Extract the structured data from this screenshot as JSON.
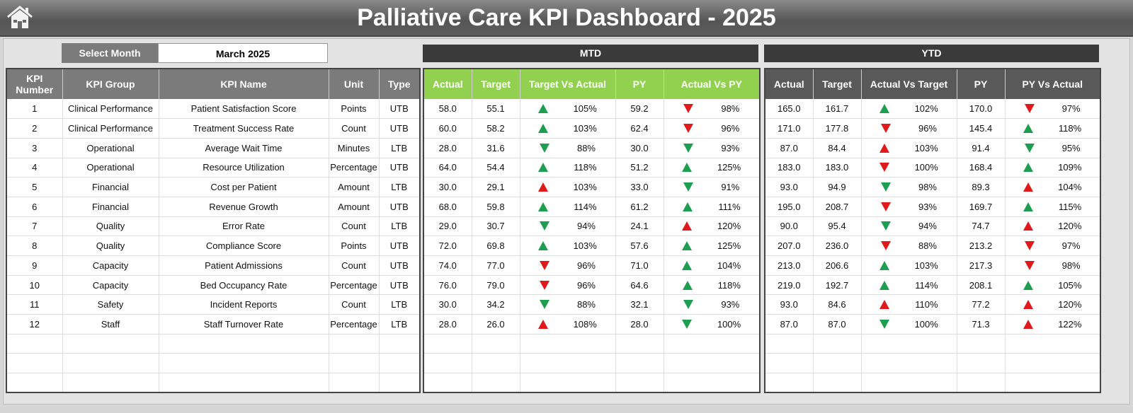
{
  "header": {
    "title": "Palliative Care KPI Dashboard - 2025",
    "home_icon": "home-icon"
  },
  "selector": {
    "label": "Select Month",
    "value": "March 2025"
  },
  "sections": {
    "mtd": "MTD",
    "ytd": "YTD"
  },
  "colors": {
    "good": "#1e9e50",
    "bad": "#e0191b",
    "mtd_header": "#92d050",
    "ytd_header": "#595959"
  },
  "left_columns": [
    "KPI Number",
    "KPI Group",
    "KPI Name",
    "Unit",
    "Type"
  ],
  "mtd_columns": [
    "Actual",
    "Target",
    "Target Vs Actual",
    "PY",
    "Actual Vs PY"
  ],
  "ytd_columns": [
    "Actual",
    "Target",
    "Actual Vs Target",
    "PY",
    "PY Vs Actual"
  ],
  "kpis": [
    {
      "num": "1",
      "group": "Clinical Performance",
      "name": "Patient Satisfaction Score",
      "unit": "Points",
      "type": "UTB"
    },
    {
      "num": "2",
      "group": "Clinical Performance",
      "name": "Treatment Success Rate",
      "unit": "Count",
      "type": "UTB"
    },
    {
      "num": "3",
      "group": "Operational",
      "name": "Average Wait Time",
      "unit": "Minutes",
      "type": "LTB"
    },
    {
      "num": "4",
      "group": "Operational",
      "name": "Resource Utilization",
      "unit": "Percentage",
      "type": "UTB"
    },
    {
      "num": "5",
      "group": "Financial",
      "name": "Cost per Patient",
      "unit": "Amount",
      "type": "LTB"
    },
    {
      "num": "6",
      "group": "Financial",
      "name": "Revenue Growth",
      "unit": "Amount",
      "type": "UTB"
    },
    {
      "num": "7",
      "group": "Quality",
      "name": "Error Rate",
      "unit": "Count",
      "type": "LTB"
    },
    {
      "num": "8",
      "group": "Quality",
      "name": "Compliance Score",
      "unit": "Points",
      "type": "UTB"
    },
    {
      "num": "9",
      "group": "Capacity",
      "name": "Patient Admissions",
      "unit": "Count",
      "type": "UTB"
    },
    {
      "num": "10",
      "group": "Capacity",
      "name": "Bed Occupancy Rate",
      "unit": "Percentage",
      "type": "UTB"
    },
    {
      "num": "11",
      "group": "Safety",
      "name": "Incident Reports",
      "unit": "Count",
      "type": "LTB"
    },
    {
      "num": "12",
      "group": "Staff",
      "name": "Staff Turnover Rate",
      "unit": "Percentage",
      "type": "LTB"
    }
  ],
  "mtd": [
    {
      "actual": "58.0",
      "target": "55.1",
      "c1": {
        "dir": "up",
        "color": "good",
        "pct": "105%"
      },
      "py": "59.2",
      "c2": {
        "dir": "down",
        "color": "bad",
        "pct": "98%"
      }
    },
    {
      "actual": "60.0",
      "target": "58.2",
      "c1": {
        "dir": "up",
        "color": "good",
        "pct": "103%"
      },
      "py": "62.4",
      "c2": {
        "dir": "down",
        "color": "bad",
        "pct": "96%"
      }
    },
    {
      "actual": "28.0",
      "target": "31.6",
      "c1": {
        "dir": "down",
        "color": "good",
        "pct": "88%"
      },
      "py": "30.0",
      "c2": {
        "dir": "down",
        "color": "good",
        "pct": "93%"
      }
    },
    {
      "actual": "64.0",
      "target": "54.4",
      "c1": {
        "dir": "up",
        "color": "good",
        "pct": "118%"
      },
      "py": "51.2",
      "c2": {
        "dir": "up",
        "color": "good",
        "pct": "125%"
      }
    },
    {
      "actual": "30.0",
      "target": "29.1",
      "c1": {
        "dir": "up",
        "color": "bad",
        "pct": "103%"
      },
      "py": "33.0",
      "c2": {
        "dir": "down",
        "color": "good",
        "pct": "91%"
      }
    },
    {
      "actual": "68.0",
      "target": "59.8",
      "c1": {
        "dir": "up",
        "color": "good",
        "pct": "114%"
      },
      "py": "61.2",
      "c2": {
        "dir": "up",
        "color": "good",
        "pct": "111%"
      }
    },
    {
      "actual": "29.0",
      "target": "30.7",
      "c1": {
        "dir": "down",
        "color": "good",
        "pct": "94%"
      },
      "py": "24.1",
      "c2": {
        "dir": "up",
        "color": "bad",
        "pct": "120%"
      }
    },
    {
      "actual": "72.0",
      "target": "69.8",
      "c1": {
        "dir": "up",
        "color": "good",
        "pct": "103%"
      },
      "py": "57.6",
      "c2": {
        "dir": "up",
        "color": "good",
        "pct": "125%"
      }
    },
    {
      "actual": "74.0",
      "target": "77.0",
      "c1": {
        "dir": "down",
        "color": "bad",
        "pct": "96%"
      },
      "py": "71.0",
      "c2": {
        "dir": "up",
        "color": "good",
        "pct": "104%"
      }
    },
    {
      "actual": "76.0",
      "target": "79.0",
      "c1": {
        "dir": "down",
        "color": "bad",
        "pct": "96%"
      },
      "py": "64.6",
      "c2": {
        "dir": "up",
        "color": "good",
        "pct": "118%"
      }
    },
    {
      "actual": "30.0",
      "target": "34.2",
      "c1": {
        "dir": "down",
        "color": "good",
        "pct": "88%"
      },
      "py": "32.1",
      "c2": {
        "dir": "down",
        "color": "good",
        "pct": "93%"
      }
    },
    {
      "actual": "28.0",
      "target": "26.0",
      "c1": {
        "dir": "up",
        "color": "bad",
        "pct": "108%"
      },
      "py": "28.0",
      "c2": {
        "dir": "down",
        "color": "good",
        "pct": "100%"
      }
    }
  ],
  "ytd": [
    {
      "actual": "165.0",
      "target": "161.7",
      "c1": {
        "dir": "up",
        "color": "good",
        "pct": "102%"
      },
      "py": "170.0",
      "c2": {
        "dir": "down",
        "color": "bad",
        "pct": "97%"
      }
    },
    {
      "actual": "171.0",
      "target": "177.8",
      "c1": {
        "dir": "down",
        "color": "bad",
        "pct": "96%"
      },
      "py": "145.4",
      "c2": {
        "dir": "up",
        "color": "good",
        "pct": "118%"
      }
    },
    {
      "actual": "87.0",
      "target": "84.4",
      "c1": {
        "dir": "up",
        "color": "bad",
        "pct": "103%"
      },
      "py": "91.4",
      "c2": {
        "dir": "down",
        "color": "good",
        "pct": "95%"
      }
    },
    {
      "actual": "183.0",
      "target": "183.0",
      "c1": {
        "dir": "down",
        "color": "bad",
        "pct": "100%"
      },
      "py": "168.4",
      "c2": {
        "dir": "up",
        "color": "good",
        "pct": "109%"
      }
    },
    {
      "actual": "93.0",
      "target": "94.9",
      "c1": {
        "dir": "down",
        "color": "good",
        "pct": "98%"
      },
      "py": "89.3",
      "c2": {
        "dir": "up",
        "color": "bad",
        "pct": "104%"
      }
    },
    {
      "actual": "195.0",
      "target": "208.7",
      "c1": {
        "dir": "down",
        "color": "bad",
        "pct": "93%"
      },
      "py": "169.7",
      "c2": {
        "dir": "up",
        "color": "good",
        "pct": "115%"
      }
    },
    {
      "actual": "90.0",
      "target": "95.4",
      "c1": {
        "dir": "down",
        "color": "good",
        "pct": "94%"
      },
      "py": "74.7",
      "c2": {
        "dir": "up",
        "color": "bad",
        "pct": "120%"
      }
    },
    {
      "actual": "207.0",
      "target": "236.0",
      "c1": {
        "dir": "down",
        "color": "bad",
        "pct": "88%"
      },
      "py": "213.2",
      "c2": {
        "dir": "down",
        "color": "bad",
        "pct": "97%"
      }
    },
    {
      "actual": "213.0",
      "target": "206.6",
      "c1": {
        "dir": "up",
        "color": "good",
        "pct": "103%"
      },
      "py": "217.3",
      "c2": {
        "dir": "down",
        "color": "bad",
        "pct": "98%"
      }
    },
    {
      "actual": "219.0",
      "target": "192.7",
      "c1": {
        "dir": "up",
        "color": "good",
        "pct": "114%"
      },
      "py": "208.1",
      "c2": {
        "dir": "up",
        "color": "good",
        "pct": "105%"
      }
    },
    {
      "actual": "93.0",
      "target": "84.6",
      "c1": {
        "dir": "up",
        "color": "bad",
        "pct": "110%"
      },
      "py": "77.2",
      "c2": {
        "dir": "up",
        "color": "bad",
        "pct": "120%"
      }
    },
    {
      "actual": "87.0",
      "target": "87.0",
      "c1": {
        "dir": "down",
        "color": "good",
        "pct": "100%"
      },
      "py": "71.3",
      "c2": {
        "dir": "up",
        "color": "bad",
        "pct": "122%"
      }
    }
  ]
}
